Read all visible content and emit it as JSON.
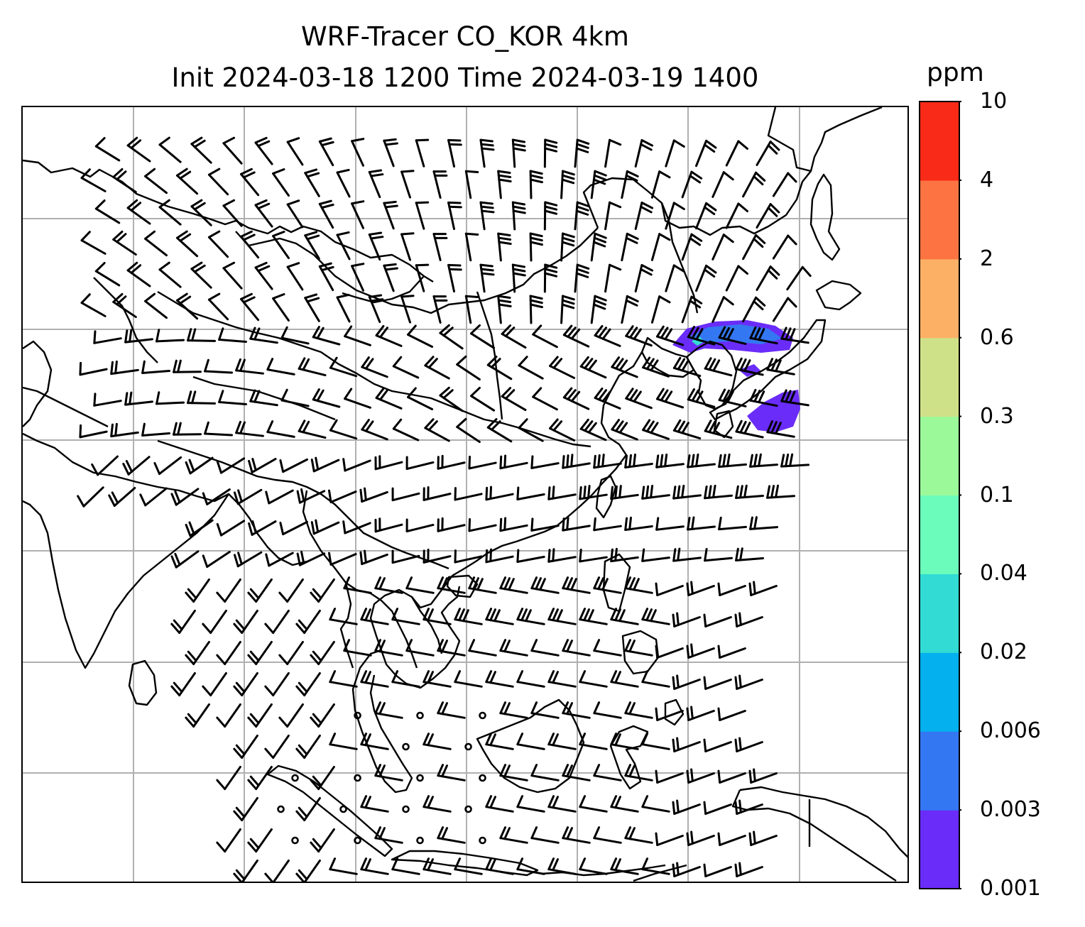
{
  "title": {
    "line1": "WRF-Tracer CO_KOR 4km",
    "line2": "Init 2024-03-18 1200 Time 2024-03-19 1400"
  },
  "colorbar": {
    "unit": "ppm",
    "levels": [
      "0.001",
      "0.003",
      "0.006",
      "0.02",
      "0.04",
      "0.1",
      "0.3",
      "0.6",
      "2",
      "4",
      "10"
    ],
    "colors": [
      "#6a2cf8",
      "#3477f2",
      "#04b0ee",
      "#32dbd4",
      "#6bfcbc",
      "#9cf99a",
      "#cfe188",
      "#fcb066",
      "#fd7442",
      "#fa2a18"
    ]
  },
  "map": {
    "gridlines": "on",
    "coastline_color": "#000000",
    "grid_color": "#b0b0b0",
    "plume_colors": [
      "#6a2cf8",
      "#3477f2",
      "#32dbd4"
    ]
  }
}
